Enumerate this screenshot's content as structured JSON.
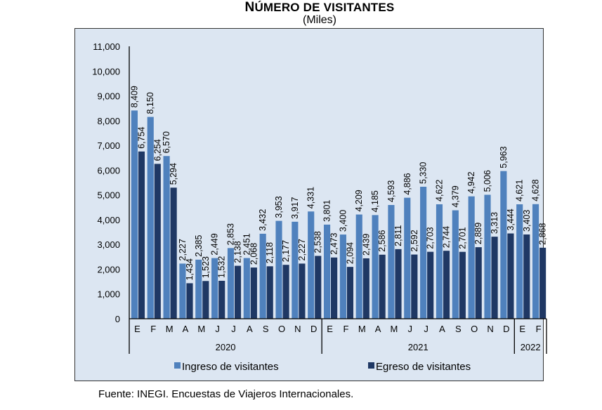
{
  "title": "Número de visitantes",
  "title_display": {
    "first": "N",
    "rest": "ÚMERO DE VISITANTES"
  },
  "subtitle": "(Miles)",
  "source": "Fuente: INEGI. Encuestas de Viajeros Internacionales.",
  "colors": {
    "ingreso": "#4f81bd",
    "egreso": "#1f3864",
    "background": "#dce6f2"
  },
  "chart_data": {
    "type": "bar",
    "title": "Número de visitantes",
    "subtitle": "(Miles)",
    "xlabel": "",
    "ylabel": "",
    "ylim": [
      0,
      11000
    ],
    "yticks": [
      0,
      1000,
      2000,
      3000,
      4000,
      5000,
      6000,
      7000,
      8000,
      9000,
      10000,
      11000
    ],
    "ytick_labels": [
      "0",
      "1,000",
      "2,000",
      "3,000",
      "4,000",
      "5,000",
      "6,000",
      "7,000",
      "8,000",
      "9,000",
      "10,000",
      "11,000"
    ],
    "grid": false,
    "legend_position": "bottom",
    "categories": [
      "E",
      "F",
      "M",
      "A",
      "M",
      "J",
      "J",
      "A",
      "S",
      "O",
      "N",
      "D",
      "E",
      "F",
      "M",
      "A",
      "M",
      "J",
      "J",
      "A",
      "S",
      "O",
      "N",
      "D",
      "E",
      "F"
    ],
    "year_groups": [
      {
        "label": "2020",
        "count": 12
      },
      {
        "label": "2021",
        "count": 12
      },
      {
        "label": "2022",
        "count": 2
      }
    ],
    "series": [
      {
        "name": "Ingreso de visitantes",
        "color": "#4f81bd",
        "values": [
          8409,
          8150,
          6570,
          2227,
          2385,
          2449,
          2853,
          2451,
          3432,
          3953,
          3917,
          4331,
          3801,
          3400,
          4209,
          4185,
          4593,
          4886,
          5330,
          4622,
          4379,
          4942,
          5006,
          5963,
          4621,
          4628
        ],
        "labels": [
          "8,409",
          "8,150",
          "6,570",
          "2,227",
          "2,385",
          "2,449",
          "2,853",
          "2,451",
          "3,432",
          "3,953",
          "3,917",
          "4,331",
          "3,801",
          "3,400",
          "4,209",
          "4,185",
          "4,593",
          "4,886",
          "5,330",
          "4,622",
          "4,379",
          "4,942",
          "5,006",
          "5,963",
          "4,621",
          "4,628"
        ]
      },
      {
        "name": "Egreso de visitantes",
        "color": "#1f3864",
        "values": [
          6754,
          6254,
          5294,
          1434,
          1523,
          1532,
          2138,
          2068,
          2118,
          2177,
          2227,
          2538,
          2473,
          2094,
          2439,
          2586,
          2811,
          2592,
          2703,
          2744,
          2701,
          2889,
          3313,
          3444,
          3403,
          2868
        ],
        "labels": [
          "6,754",
          "6,254",
          "5,294",
          "1,434",
          "1,523",
          "1,532",
          "2,138",
          "2,068",
          "2,118",
          "2,177",
          "2,227",
          "2,538",
          "2,473",
          "2,094",
          "2,439",
          "2,586",
          "2,811",
          "2,592",
          "2,703",
          "2,744",
          "2,701",
          "2,889",
          "3,313",
          "3,444",
          "3,403",
          "2,868"
        ]
      }
    ]
  }
}
